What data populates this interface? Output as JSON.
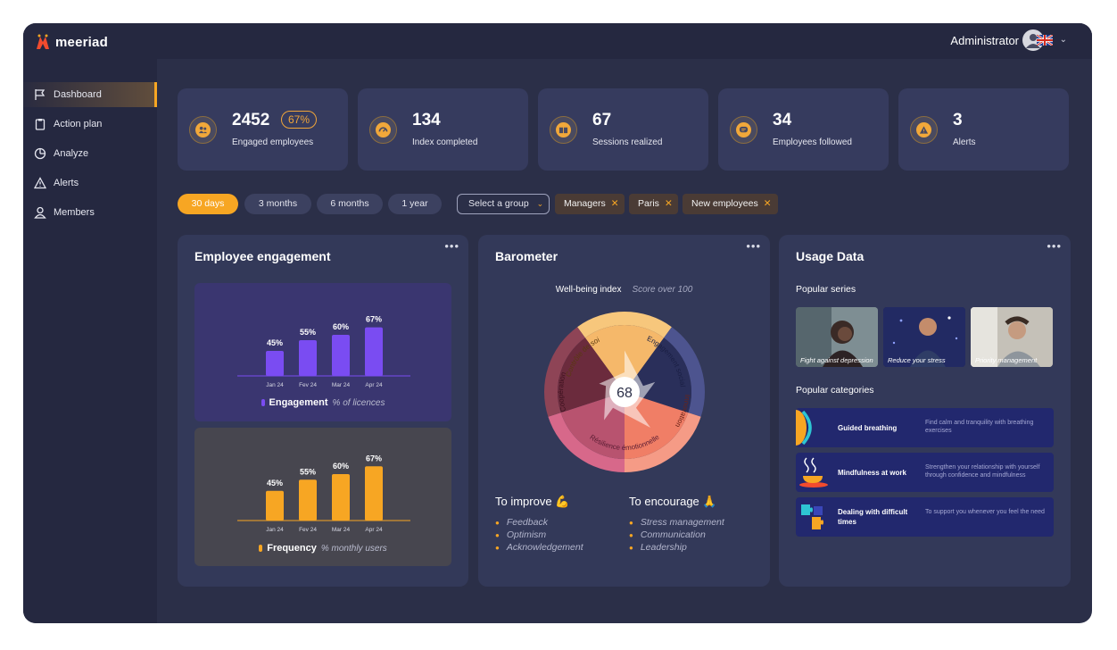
{
  "app": {
    "brand": "meeriad"
  },
  "header": {
    "user": "Administrator",
    "language_icon": "uk-flag-icon"
  },
  "sidebar": {
    "items": [
      {
        "label": "Dashboard",
        "icon": "flag-icon",
        "active": true
      },
      {
        "label": "Action plan",
        "icon": "clipboard-icon",
        "active": false
      },
      {
        "label": "Analyze",
        "icon": "pie-chart-icon",
        "active": false
      },
      {
        "label": "Alerts",
        "icon": "warning-icon",
        "active": false
      },
      {
        "label": "Members",
        "icon": "user-icon",
        "active": false
      }
    ]
  },
  "kpis": [
    {
      "value": "2452",
      "badge": "67%",
      "label": "Engaged employees",
      "icon": "people-icon"
    },
    {
      "value": "134",
      "label": "Index completed",
      "icon": "gauge-icon"
    },
    {
      "value": "67",
      "label": "Sessions realized",
      "icon": "book-icon"
    },
    {
      "value": "34",
      "label": "Employees followed",
      "icon": "chat-icon"
    },
    {
      "value": "3",
      "label": "Alerts",
      "icon": "warning-icon"
    }
  ],
  "filters": {
    "periods": [
      "30 days",
      "3 months",
      "6 months",
      "1 year"
    ],
    "active_period": "30 days",
    "group_select": "Select a group",
    "chips": [
      "Managers",
      "Paris",
      "New employees"
    ]
  },
  "engagement": {
    "title": "Employee engagement",
    "more": "•••",
    "engagement_legend": "Engagement",
    "engagement_unit": "% of licences",
    "frequency_legend": "Frequency",
    "frequency_unit": "% monthly users"
  },
  "barometer": {
    "title": "Barometer",
    "more": "•••",
    "index_label": "Well-being index",
    "index_note": "Score over 100",
    "score": "68",
    "segments": [
      "Contrôle de soi",
      "Engagement social",
      "Innovation",
      "Résilience émotionnelle",
      "Coopération"
    ],
    "improve_title": "To improve 💪",
    "improve": [
      "Feedback",
      "Optimism",
      "Acknowledgement"
    ],
    "encourage_title": "To encourage 🙏",
    "encourage": [
      "Stress management",
      "Communication",
      "Leadership"
    ]
  },
  "usage": {
    "title": "Usage Data",
    "more": "•••",
    "series_title": "Popular series",
    "series": [
      {
        "label": "Fight against depression"
      },
      {
        "label": "Reduce your stress"
      },
      {
        "label": "Priority management"
      }
    ],
    "categories_title": "Popular categories",
    "categories": [
      {
        "title": "Guided breathing",
        "desc": "Find calm and tranquility with breathing exercises",
        "icon": "breathing-icon"
      },
      {
        "title": "Mindfulness at work",
        "desc": "Strengthen your relationship with yourself through confidence and mindfulness",
        "icon": "tea-cup-icon"
      },
      {
        "title": "Dealing with difficult times",
        "desc": "To support you whenever you feel the need",
        "icon": "puzzle-icon"
      }
    ]
  },
  "chart_data": [
    {
      "type": "bar",
      "categories": [
        "Jan 24",
        "Fev 24",
        "Mar 24",
        "Apr 24"
      ],
      "series": [
        {
          "name": "Engagement",
          "values": [
            45,
            55,
            60,
            67
          ]
        }
      ],
      "data_labels": [
        "45%",
        "55%",
        "60%",
        "67%"
      ],
      "ylabel": "% of licences",
      "ylim": [
        0,
        100
      ],
      "color": "#7a4cf2"
    },
    {
      "type": "bar",
      "categories": [
        "Jan 24",
        "Fev 24",
        "Mar 24",
        "Apr 24"
      ],
      "series": [
        {
          "name": "Frequency",
          "values": [
            45,
            55,
            60,
            67
          ]
        }
      ],
      "data_labels": [
        "45%",
        "55%",
        "60%",
        "67%"
      ],
      "ylabel": "% monthly users",
      "ylim": [
        0,
        100
      ],
      "color": "#f7a623"
    },
    {
      "type": "radar",
      "title": "Well-being index",
      "categories": [
        "Contrôle de soi",
        "Engagement social",
        "Innovation",
        "Résilience émotionnelle",
        "Coopération"
      ],
      "values": [
        62,
        48,
        66,
        52,
        40
      ],
      "score": 68,
      "range": [
        0,
        100
      ]
    }
  ]
}
